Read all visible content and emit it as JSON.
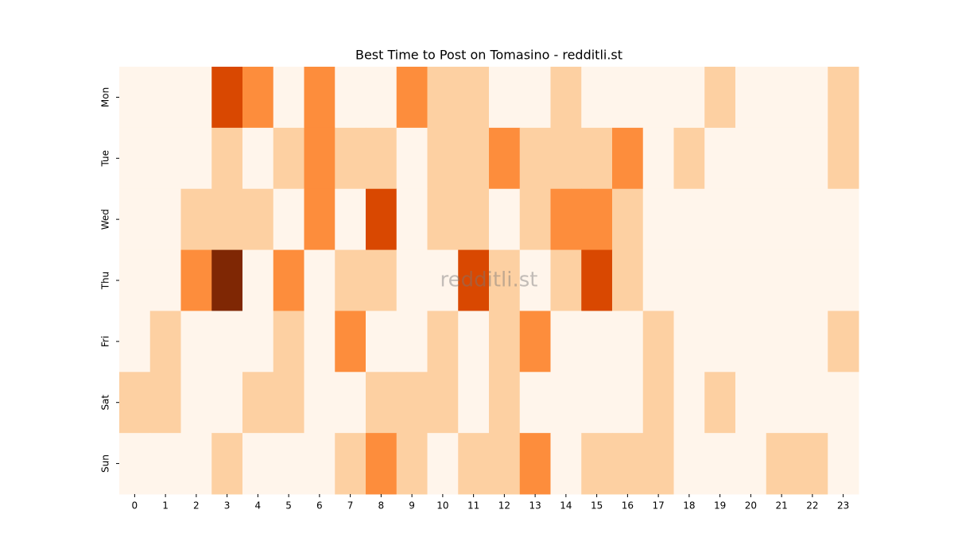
{
  "chart_data": {
    "type": "heatmap",
    "title": "Best Time to Post on Tomasino - redditli.st",
    "watermark": "redditli.st",
    "colormap": "Oranges",
    "x": [
      0,
      1,
      2,
      3,
      4,
      5,
      6,
      7,
      8,
      9,
      10,
      11,
      12,
      13,
      14,
      15,
      16,
      17,
      18,
      19,
      20,
      21,
      22,
      23
    ],
    "y": [
      "Mon",
      "Tue",
      "Wed",
      "Thu",
      "Fri",
      "Sat",
      "Sun"
    ],
    "values": [
      [
        0,
        0,
        0,
        3,
        2,
        0,
        2,
        0,
        0,
        2,
        1,
        1,
        0,
        0,
        1,
        0,
        0,
        0,
        0,
        1,
        0,
        0,
        0,
        1
      ],
      [
        0,
        0,
        0,
        1,
        0,
        1,
        2,
        1,
        1,
        0,
        1,
        1,
        2,
        1,
        1,
        1,
        2,
        0,
        1,
        0,
        0,
        0,
        0,
        1
      ],
      [
        0,
        0,
        1,
        1,
        1,
        0,
        2,
        0,
        3,
        0,
        1,
        1,
        0,
        1,
        2,
        2,
        1,
        0,
        0,
        0,
        0,
        0,
        0,
        0
      ],
      [
        0,
        0,
        2,
        4,
        0,
        2,
        0,
        1,
        1,
        0,
        0,
        3,
        1,
        0,
        1,
        3,
        1,
        0,
        0,
        0,
        0,
        0,
        0,
        0
      ],
      [
        0,
        1,
        0,
        0,
        0,
        1,
        0,
        2,
        0,
        0,
        1,
        0,
        1,
        2,
        0,
        0,
        0,
        1,
        0,
        0,
        0,
        0,
        0,
        1
      ],
      [
        1,
        1,
        0,
        0,
        1,
        1,
        0,
        0,
        1,
        1,
        1,
        0,
        1,
        0,
        0,
        0,
        0,
        1,
        0,
        1,
        0,
        0,
        0,
        0
      ],
      [
        0,
        0,
        0,
        1,
        0,
        0,
        0,
        1,
        2,
        1,
        0,
        1,
        1,
        2,
        0,
        1,
        1,
        1,
        0,
        0,
        0,
        1,
        1,
        0
      ]
    ]
  }
}
